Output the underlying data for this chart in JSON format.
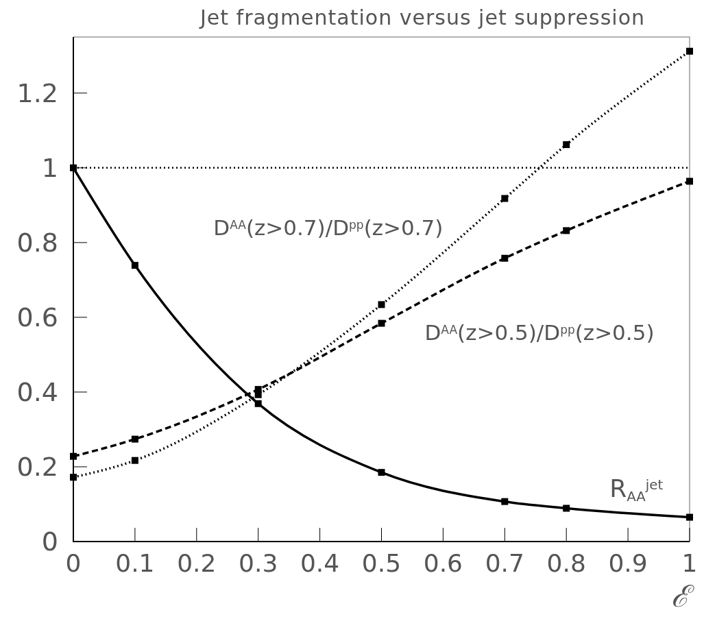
{
  "chart_data": {
    "type": "line",
    "title": "Jet fragmentation versus jet suppression",
    "xlabel": "ℰ",
    "x": [
      0,
      0.1,
      0.3,
      0.5,
      0.7,
      0.8,
      1
    ],
    "series": [
      {
        "name": "R$_{AA}$$^{jet}$",
        "color": "#000000",
        "line_style": "solid",
        "values": [
          1.0,
          0.739,
          0.369,
          0.185,
          0.107,
          0.089,
          0.065
        ]
      },
      {
        "name": "D$^{AA}$(z>0.7)/D$^{pp}$(z>0.7)",
        "color": "#000000",
        "line_style": "dotted",
        "values": [
          0.172,
          0.217,
          0.393,
          0.634,
          0.918,
          1.062,
          1.312
        ]
      },
      {
        "name": "D$^{AA}$(z>0.5)/D$^{pp}$(z>0.5)",
        "color": "#000000",
        "line_style": "dashed",
        "values": [
          0.228,
          0.274,
          0.407,
          0.584,
          0.758,
          0.832,
          0.964
        ]
      }
    ],
    "marker": "square",
    "xlim": [
      0,
      1
    ],
    "ylim": [
      0,
      1.35
    ],
    "xticks": [
      0,
      0.1,
      0.2,
      0.3,
      0.4,
      0.5,
      0.6,
      0.7,
      0.8,
      0.9,
      1
    ],
    "yticks": [
      0,
      0.2,
      0.4,
      0.6,
      0.8,
      1,
      1.2
    ],
    "ref_lines": [
      {
        "axis": "y",
        "value": 1,
        "color": "#000000",
        "line_style": "dotted"
      }
    ]
  }
}
